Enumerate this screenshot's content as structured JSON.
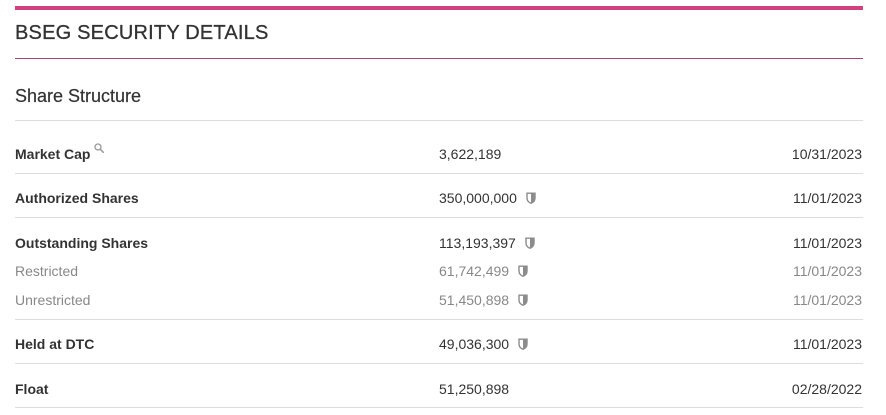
{
  "page": {
    "title": "BSEG SECURITY DETAILS",
    "accent_color": "#d1407f",
    "rule_color": "#a3437a"
  },
  "section": {
    "title": "Share Structure"
  },
  "rows": {
    "market_cap": {
      "label": "Market Cap",
      "value": "3,622,189",
      "date": "10/31/2023",
      "icon": "magnifier-icon"
    },
    "authorized": {
      "label": "Authorized Shares",
      "value": "350,000,000",
      "date": "11/01/2023",
      "icon": "shield-icon"
    },
    "outstanding": {
      "label": "Outstanding Shares",
      "value": "113,193,397",
      "date": "11/01/2023",
      "icon": "shield-icon"
    },
    "restricted": {
      "label": "Restricted",
      "value": "61,742,499",
      "date": "11/01/2023",
      "icon": "shield-icon"
    },
    "unrestricted": {
      "label": "Unrestricted",
      "value": "51,450,898",
      "date": "11/01/2023",
      "icon": "shield-icon"
    },
    "held_dtc": {
      "label": "Held at DTC",
      "value": "49,036,300",
      "date": "11/01/2023",
      "icon": "shield-icon"
    },
    "float": {
      "label": "Float",
      "value": "51,250,898",
      "date": "02/28/2022"
    }
  }
}
